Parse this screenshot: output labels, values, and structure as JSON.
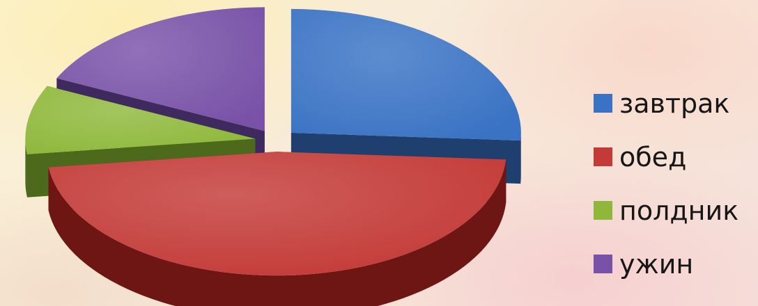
{
  "chart_data": {
    "type": "pie",
    "style": "3d-exploded",
    "legend_position": "right",
    "categories": [
      "завтрак",
      "обед",
      "полдник",
      "ужин"
    ],
    "values": [
      26,
      47,
      9,
      18
    ],
    "colors": [
      "#3a73c4",
      "#c33a37",
      "#8fb83b",
      "#7952a8"
    ],
    "side_colors": [
      "#1f3f6e",
      "#6e1613",
      "#4d6a1c",
      "#3e2a5e"
    ]
  }
}
